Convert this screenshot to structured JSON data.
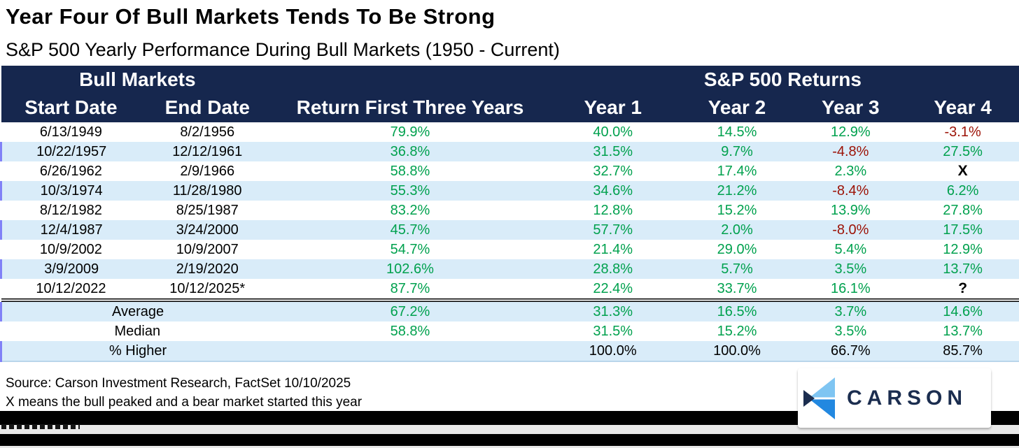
{
  "title": "Year Four Of Bull Markets Tends To Be Strong",
  "subtitle": "S&P 500 Yearly Performance During Bull Markets (1950 - Current)",
  "chart_data": {
    "type": "table",
    "group_headers": {
      "left": "Bull Markets",
      "right": "S&P 500 Returns"
    },
    "columns": [
      "Start Date",
      "End Date",
      "Return First Three Years",
      "Year 1",
      "Year 2",
      "Year 3",
      "Year 4"
    ],
    "rows": [
      [
        "6/13/1949",
        "8/2/1956",
        "79.9%",
        "40.0%",
        "14.5%",
        "12.9%",
        "-3.1%"
      ],
      [
        "10/22/1957",
        "12/12/1961",
        "36.8%",
        "31.5%",
        "9.7%",
        "-4.8%",
        "27.5%"
      ],
      [
        "6/26/1962",
        "2/9/1966",
        "58.8%",
        "32.7%",
        "17.4%",
        "2.3%",
        "X"
      ],
      [
        "10/3/1974",
        "11/28/1980",
        "55.3%",
        "34.6%",
        "21.2%",
        "-8.4%",
        "6.2%"
      ],
      [
        "8/12/1982",
        "8/25/1987",
        "83.2%",
        "12.8%",
        "15.2%",
        "13.9%",
        "27.8%"
      ],
      [
        "12/4/1987",
        "3/24/2000",
        "45.7%",
        "57.7%",
        "2.0%",
        "-8.0%",
        "17.5%"
      ],
      [
        "10/9/2002",
        "10/9/2007",
        "54.7%",
        "21.4%",
        "29.0%",
        "5.4%",
        "12.9%"
      ],
      [
        "3/9/2009",
        "2/19/2020",
        "102.6%",
        "28.8%",
        "5.7%",
        "3.5%",
        "13.7%"
      ],
      [
        "10/12/2022",
        "10/12/2025*",
        "87.7%",
        "22.4%",
        "33.7%",
        "16.1%",
        "?"
      ]
    ],
    "summary_rows": [
      {
        "label": "Average",
        "values": [
          "67.2%",
          "31.3%",
          "16.5%",
          "3.7%",
          "14.6%"
        ],
        "values_black": false
      },
      {
        "label": "Median",
        "values": [
          "58.8%",
          "31.5%",
          "15.2%",
          "3.5%",
          "13.7%"
        ],
        "values_black": false
      },
      {
        "label": "% Higher",
        "values": [
          "",
          "100.0%",
          "100.0%",
          "66.7%",
          "85.7%"
        ],
        "values_black": true
      }
    ]
  },
  "footer": {
    "source": "Source: Carson Investment Research, FactSet 10/10/2025",
    "note": "X means the bull peaked and a bear market started this year"
  },
  "logo": {
    "text": "CARSON"
  },
  "colors": {
    "navy": "#16274e",
    "row_blue": "#d9ecf9",
    "green": "#00a14e",
    "red": "#9c1206",
    "tick_purple": "#8181f7",
    "logo_navy": "#1b2d4f",
    "logo_light_blue": "#7fc5f2",
    "logo_blue": "#2288e0",
    "redaction_black": "#000000"
  }
}
